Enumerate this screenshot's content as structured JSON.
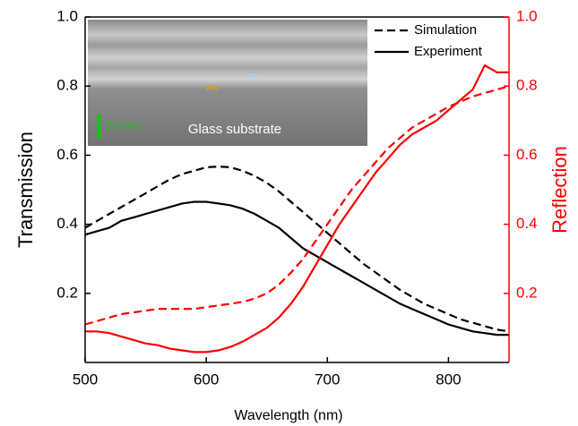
{
  "chart_data": {
    "type": "line",
    "xlabel": "Wavelength (nm)",
    "ylabel": "Transmission",
    "y2label": "Reflection",
    "x": [
      500,
      510,
      520,
      530,
      540,
      550,
      560,
      570,
      580,
      590,
      600,
      610,
      620,
      630,
      640,
      650,
      660,
      670,
      680,
      690,
      700,
      710,
      720,
      730,
      740,
      750,
      760,
      770,
      780,
      790,
      800,
      810,
      820,
      830,
      840,
      850
    ],
    "xlim": [
      500,
      850
    ],
    "xticks": [
      500,
      600,
      700,
      800
    ],
    "ylim": [
      0,
      1
    ],
    "yticks": [
      0.2,
      0.4,
      0.6,
      0.8,
      {
        "value": 1,
        "label": "1.0"
      }
    ],
    "y2lim": [
      0,
      1
    ],
    "y2ticks": [
      0.2,
      0.4,
      0.6,
      0.8,
      {
        "value": 1,
        "label": "1.0"
      }
    ],
    "y2color": "#ff0000",
    "legend": "upper right",
    "series": [
      {
        "name": "Simulation",
        "color": "#000000",
        "linestyle": "dashed",
        "values": [
          0.39,
          0.41,
          0.43,
          0.45,
          0.47,
          0.49,
          0.51,
          0.53,
          0.545,
          0.555,
          0.565,
          0.567,
          0.565,
          0.555,
          0.54,
          0.52,
          0.495,
          0.465,
          0.435,
          0.405,
          0.375,
          0.345,
          0.315,
          0.285,
          0.26,
          0.235,
          0.21,
          0.19,
          0.17,
          0.155,
          0.14,
          0.125,
          0.115,
          0.105,
          0.095,
          0.09
        ]
      },
      {
        "name": "Experiment",
        "color": "#000000",
        "linestyle": "solid",
        "values": [
          0.37,
          0.38,
          0.39,
          0.41,
          0.42,
          0.43,
          0.44,
          0.45,
          0.46,
          0.465,
          0.465,
          0.46,
          0.455,
          0.445,
          0.43,
          0.41,
          0.39,
          0.36,
          0.33,
          0.31,
          0.29,
          0.27,
          0.25,
          0.23,
          0.21,
          0.19,
          0.17,
          0.155,
          0.14,
          0.125,
          0.11,
          0.1,
          0.09,
          0.085,
          0.08,
          0.08
        ]
      },
      {
        "color": "#ff0000",
        "linestyle": "dashed",
        "axis": "y2",
        "values": [
          0.11,
          0.12,
          0.13,
          0.14,
          0.145,
          0.15,
          0.155,
          0.155,
          0.155,
          0.155,
          0.16,
          0.165,
          0.17,
          0.175,
          0.185,
          0.2,
          0.225,
          0.26,
          0.3,
          0.35,
          0.4,
          0.45,
          0.5,
          0.54,
          0.58,
          0.62,
          0.65,
          0.68,
          0.7,
          0.72,
          0.74,
          0.755,
          0.77,
          0.78,
          0.79,
          0.8
        ]
      },
      {
        "color": "#ff0000",
        "linestyle": "solid",
        "axis": "y2",
        "values": [
          0.09,
          0.09,
          0.085,
          0.075,
          0.065,
          0.055,
          0.05,
          0.04,
          0.035,
          0.03,
          0.03,
          0.035,
          0.045,
          0.06,
          0.08,
          0.1,
          0.13,
          0.17,
          0.22,
          0.28,
          0.34,
          0.4,
          0.45,
          0.5,
          0.55,
          0.59,
          0.63,
          0.66,
          0.68,
          0.7,
          0.73,
          0.76,
          0.79,
          0.86,
          0.84,
          0.84
        ]
      }
    ],
    "inset": {
      "labels": {
        "au": "Au",
        "tio2": "TiO₂",
        "scale": "50 nm",
        "substrate": "Glass substrate"
      }
    }
  }
}
